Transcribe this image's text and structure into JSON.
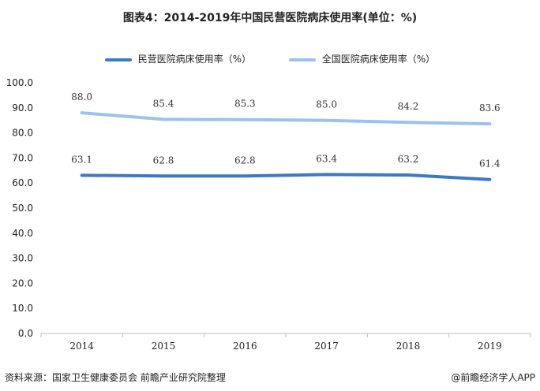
{
  "chart_data": {
    "type": "line",
    "title": "图表4：2014-2019年中国民营医院病床使用率(单位：%)",
    "categories": [
      "2014",
      "2015",
      "2016",
      "2017",
      "2018",
      "2019"
    ],
    "series": [
      {
        "name": "民营医院病床使用率（%）",
        "values": [
          63.1,
          62.8,
          62.8,
          63.4,
          63.2,
          61.4
        ],
        "color": "#3d79c4"
      },
      {
        "name": "全国医院病床使用率（%）",
        "values": [
          88.0,
          85.4,
          85.3,
          85.0,
          84.2,
          83.6
        ],
        "color": "#9cc2ea"
      }
    ],
    "yticks": [
      "0.0",
      "10.0",
      "20.0",
      "30.0",
      "40.0",
      "50.0",
      "60.0",
      "70.0",
      "80.0",
      "90.0",
      "100.0"
    ],
    "ylim": [
      0,
      100
    ],
    "legend_position": "top-center",
    "grid": false
  },
  "footer": {
    "source": "资料来源：国家卫生健康委员会 前瞻产业研究院整理",
    "credit": "@前瞻经济学人APP"
  }
}
